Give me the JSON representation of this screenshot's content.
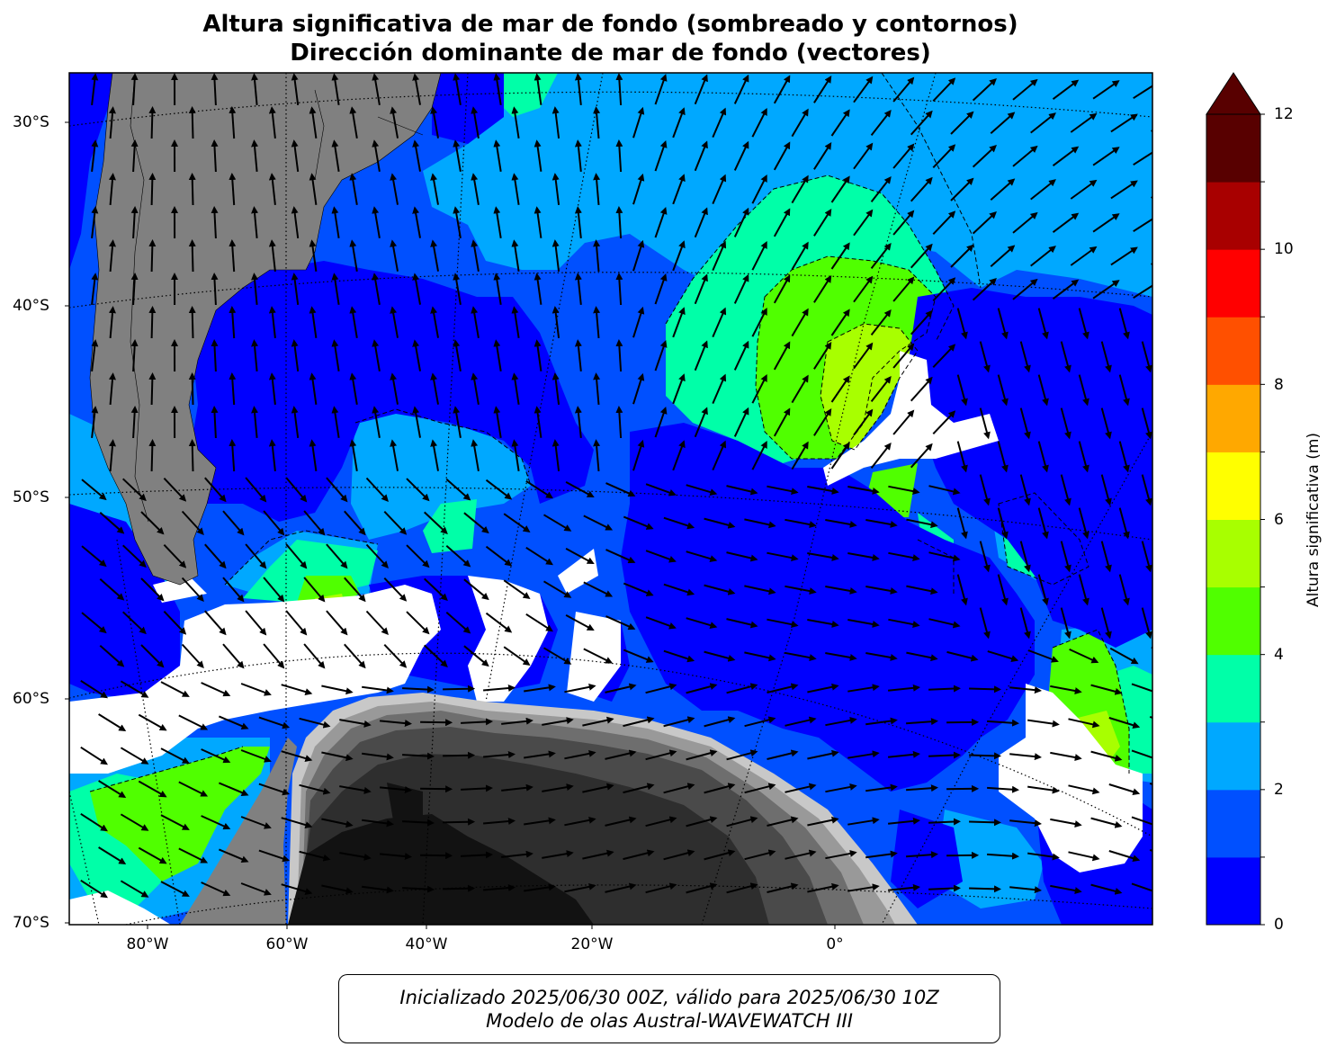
{
  "title_line1": "Altura significativa de mar de fondo (sombreado y contornos)",
  "title_line2": "Dirección dominante de mar de fondo (vectores)",
  "lat_labels": [
    "30°S",
    "40°S",
    "50°S",
    "60°S",
    "70°S"
  ],
  "lon_labels": [
    "80°W",
    "60°W",
    "40°W",
    "20°W",
    "0°"
  ],
  "colorbar": {
    "label": "Altura significativa (m)",
    "ticks": [
      "0",
      "2",
      "4",
      "6",
      "8",
      "10",
      "12"
    ],
    "levels": [
      0,
      1,
      2,
      3,
      4,
      5,
      6,
      7,
      8,
      9,
      10,
      11,
      12
    ],
    "colors": [
      "#0000ff",
      "#0050ff",
      "#00a8ff",
      "#00ffa8",
      "#50ff00",
      "#a8ff00",
      "#ffff00",
      "#ffa800",
      "#ff5000",
      "#ff0000",
      "#a80000",
      "#580000"
    ],
    "extend": "max"
  },
  "land_color": "#808080",
  "antarctica_shades": [
    "#121212",
    "#2e2e2e",
    "#4a4a4a",
    "#6e6e6e",
    "#999999",
    "#c8c8c8"
  ],
  "footer": {
    "line1": "Inicializado 2025/06/30 00Z, válido para 2025/06/30 10Z",
    "line2": "Modelo de olas Austral-WAVEWATCH III"
  }
}
